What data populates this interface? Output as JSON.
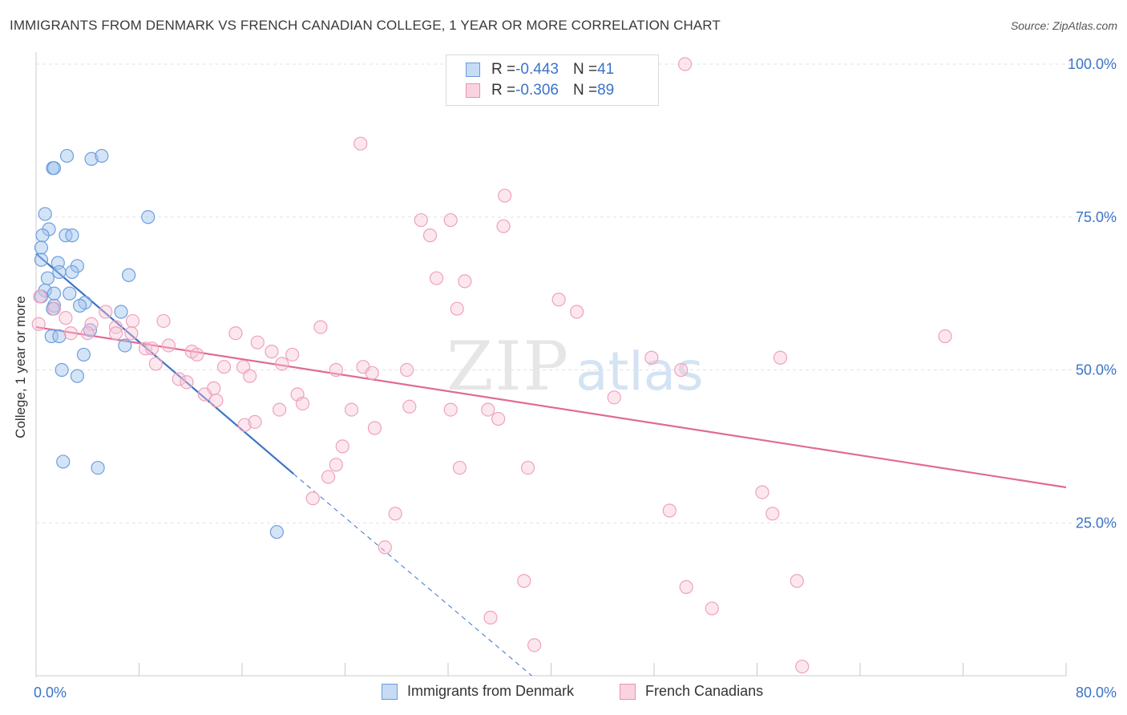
{
  "title": "IMMIGRANTS FROM DENMARK VS FRENCH CANADIAN COLLEGE, 1 YEAR OR MORE CORRELATION CHART",
  "source": "Source: ZipAtlas.com",
  "colors": {
    "blue": "#3a74c8",
    "blue_fill": "#b9d2f2",
    "pink": "#e06b96",
    "pink_fill": "#f7c4d5",
    "grid": "#e3e3e3",
    "axis_label": "#3a74c8"
  },
  "legend_top": {
    "rows": [
      {
        "r_label": "R = ",
        "r_value": "-0.443",
        "n_label": "N = ",
        "n_value": "41"
      },
      {
        "r_label": "R = ",
        "r_value": "-0.306",
        "n_label": "N = ",
        "n_value": "89"
      }
    ]
  },
  "chart_data": {
    "type": "scatter",
    "title": "IMMIGRANTS FROM DENMARK VS FRENCH CANADIAN COLLEGE, 1 YEAR OR MORE CORRELATION CHART",
    "xlabel": "",
    "ylabel": "College, 1 year or more",
    "xlim": [
      0,
      80
    ],
    "ylim": [
      0,
      102
    ],
    "x_tick_labels": [
      "0.0%",
      "80.0%"
    ],
    "y_tick_labels": [
      "100.0%",
      "75.0%",
      "50.0%",
      "25.0%"
    ],
    "y_ticks": [
      100,
      75,
      50,
      25
    ],
    "grid": true,
    "legend_placement": "bottom",
    "series": [
      {
        "name": "Immigrants from Denmark",
        "color": "#3a74c8",
        "points": [
          [
            2.4,
            85
          ],
          [
            4.3,
            84.5
          ],
          [
            5.1,
            85
          ],
          [
            1.3,
            83
          ],
          [
            1.4,
            83
          ],
          [
            0.7,
            75.5
          ],
          [
            8.7,
            75
          ],
          [
            1.0,
            73
          ],
          [
            0.5,
            72
          ],
          [
            2.3,
            72
          ],
          [
            2.8,
            72
          ],
          [
            0.4,
            70
          ],
          [
            0.4,
            68
          ],
          [
            1.7,
            67.5
          ],
          [
            3.2,
            67
          ],
          [
            1.8,
            66
          ],
          [
            2.8,
            66
          ],
          [
            7.2,
            65.5
          ],
          [
            0.9,
            65
          ],
          [
            0.7,
            63
          ],
          [
            1.4,
            62.5
          ],
          [
            2.6,
            62.5
          ],
          [
            0.4,
            62
          ],
          [
            3.8,
            61
          ],
          [
            1.4,
            60.5
          ],
          [
            1.3,
            60
          ],
          [
            3.4,
            60.5
          ],
          [
            6.6,
            59.5
          ],
          [
            4.2,
            56.5
          ],
          [
            1.2,
            55.5
          ],
          [
            1.8,
            55.5
          ],
          [
            6.9,
            54
          ],
          [
            3.7,
            52.5
          ],
          [
            2.0,
            50
          ],
          [
            3.2,
            49
          ],
          [
            2.1,
            35
          ],
          [
            4.8,
            34
          ],
          [
            18.7,
            23.5
          ]
        ]
      },
      {
        "name": "French Canadians",
        "color": "#e06b96",
        "points": [
          [
            50.4,
            100
          ],
          [
            25.2,
            87
          ],
          [
            36.4,
            78.5
          ],
          [
            29.9,
            74.5
          ],
          [
            32.2,
            74.5
          ],
          [
            36.3,
            73.5
          ],
          [
            30.6,
            72
          ],
          [
            31.1,
            65
          ],
          [
            33.3,
            64.5
          ],
          [
            40.6,
            61.5
          ],
          [
            32.7,
            60
          ],
          [
            42.0,
            59.5
          ],
          [
            0.3,
            62
          ],
          [
            1.4,
            60
          ],
          [
            5.4,
            59.5
          ],
          [
            2.3,
            58.5
          ],
          [
            9.9,
            58
          ],
          [
            4.3,
            57.5
          ],
          [
            7.5,
            58
          ],
          [
            6.2,
            57
          ],
          [
            2.7,
            56
          ],
          [
            4.0,
            56
          ],
          [
            6.2,
            56
          ],
          [
            7.4,
            56
          ],
          [
            15.5,
            56
          ],
          [
            22.1,
            57
          ],
          [
            17.2,
            54.5
          ],
          [
            8.5,
            53.5
          ],
          [
            9.0,
            53.5
          ],
          [
            10.3,
            54
          ],
          [
            12.1,
            53
          ],
          [
            12.5,
            52.5
          ],
          [
            18.3,
            53
          ],
          [
            19.9,
            52.5
          ],
          [
            19.1,
            51
          ],
          [
            14.6,
            50.5
          ],
          [
            16.1,
            50.5
          ],
          [
            23.3,
            50
          ],
          [
            25.4,
            50.5
          ],
          [
            26.1,
            49.5
          ],
          [
            28.8,
            50
          ],
          [
            9.3,
            51
          ],
          [
            11.1,
            48.5
          ],
          [
            11.7,
            48
          ],
          [
            16.6,
            49
          ],
          [
            13.8,
            47
          ],
          [
            13.1,
            46
          ],
          [
            14.0,
            45
          ],
          [
            20.3,
            46
          ],
          [
            20.7,
            44.5
          ],
          [
            18.9,
            43.5
          ],
          [
            24.5,
            43.5
          ],
          [
            29.0,
            44
          ],
          [
            32.2,
            43.5
          ],
          [
            35.1,
            43.5
          ],
          [
            35.9,
            42
          ],
          [
            26.3,
            40.5
          ],
          [
            16.2,
            41
          ],
          [
            17.0,
            41.5
          ],
          [
            50.1,
            50
          ],
          [
            47.8,
            52
          ],
          [
            57.8,
            52
          ],
          [
            44.9,
            45.5
          ],
          [
            70.6,
            55.5
          ],
          [
            23.8,
            37.5
          ],
          [
            23.3,
            34.5
          ],
          [
            22.7,
            32.5
          ],
          [
            32.9,
            34
          ],
          [
            38.2,
            34
          ],
          [
            21.5,
            29
          ],
          [
            27.9,
            26.5
          ],
          [
            27.1,
            21
          ],
          [
            49.2,
            27
          ],
          [
            56.4,
            30
          ],
          [
            57.2,
            26.5
          ],
          [
            37.9,
            15.5
          ],
          [
            50.5,
            14.5
          ],
          [
            52.5,
            11
          ],
          [
            59.1,
            15.5
          ],
          [
            35.3,
            9.5
          ],
          [
            38.7,
            5
          ],
          [
            59.5,
            1.5
          ],
          [
            0.2,
            57.5
          ]
        ]
      }
    ],
    "trend_lines": [
      {
        "series": "Immigrants from Denmark",
        "x": [
          0,
          20
        ],
        "y": [
          69,
          33
        ],
        "dashed_extension_to": [
          38.5,
          0
        ]
      },
      {
        "series": "French Canadians",
        "x": [
          0,
          80
        ],
        "y": [
          57,
          30.8
        ]
      }
    ]
  },
  "bottom_legend": {
    "items": [
      {
        "label": "Immigrants from Denmark"
      },
      {
        "label": "French Canadians"
      }
    ]
  },
  "watermark": "ZIPatlas"
}
